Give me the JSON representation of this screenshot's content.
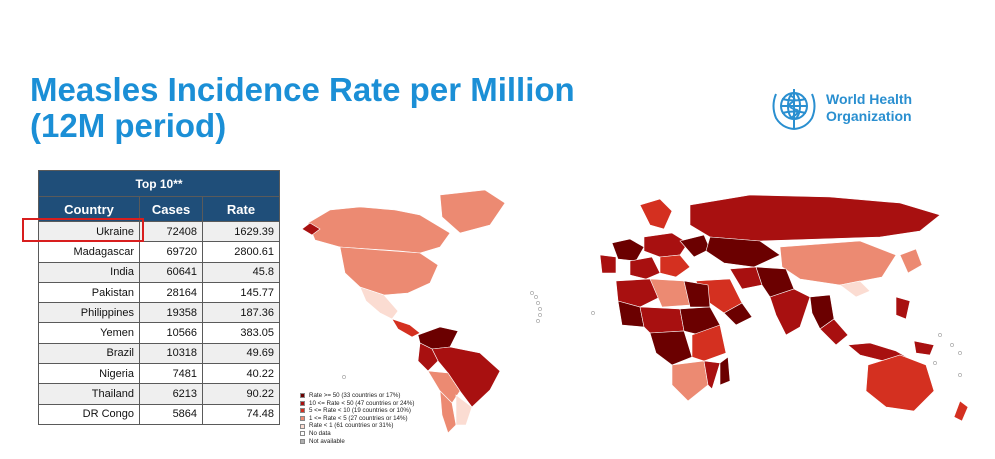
{
  "title_line1": "Measles Incidence Rate per Million",
  "title_line2": "(12M period)",
  "logo": {
    "line1": "World Health",
    "line2": "Organization",
    "icon": "who-emblem-icon"
  },
  "colors": {
    "title": "#1b8fd6",
    "header_bg": "#1f4e79",
    "highlight": "#d81e1e",
    "rate_ge_50": "#6b0000",
    "rate_10_50": "#a81010",
    "rate_5_10": "#d43020",
    "rate_1_5": "#ec8a72",
    "rate_lt_1": "#fbdcd2",
    "no_data": "#ffffff",
    "not_available": "#b0b0b0"
  },
  "chart_data": {
    "type": "table",
    "title": "Top 10**",
    "columns": [
      "Country",
      "Cases",
      "Rate"
    ],
    "rows": [
      [
        "Ukraine",
        "72408",
        "1629.39"
      ],
      [
        "Madagascar",
        "69720",
        "2800.61"
      ],
      [
        "India",
        "60641",
        "45.8"
      ],
      [
        "Pakistan",
        "28164",
        "145.77"
      ],
      [
        "Philippines",
        "19358",
        "187.36"
      ],
      [
        "Yemen",
        "10566",
        "383.05"
      ],
      [
        "Brazil",
        "10318",
        "49.69"
      ],
      [
        "Nigeria",
        "7481",
        "40.22"
      ],
      [
        "Thailand",
        "6213",
        "90.22"
      ],
      [
        "DR Congo",
        "5864",
        "74.48"
      ]
    ],
    "highlighted_row": "Ukraine"
  },
  "legend": [
    {
      "label": "Rate >= 50 (33 countries or 17%)",
      "color_key": "rate_ge_50"
    },
    {
      "label": "10 <= Rate < 50 (47 countries or 24%)",
      "color_key": "rate_10_50"
    },
    {
      "label": "5 <= Rate < 10 (19 countries or 10%)",
      "color_key": "rate_5_10"
    },
    {
      "label": "1 <= Rate < 5 (27 countries or 14%)",
      "color_key": "rate_1_5"
    },
    {
      "label": "Rate < 1 (61 countries or 31%)",
      "color_key": "rate_lt_1"
    },
    {
      "label": "No data",
      "color_key": "no_data"
    },
    {
      "label": "Not available",
      "color_key": "not_available"
    }
  ]
}
